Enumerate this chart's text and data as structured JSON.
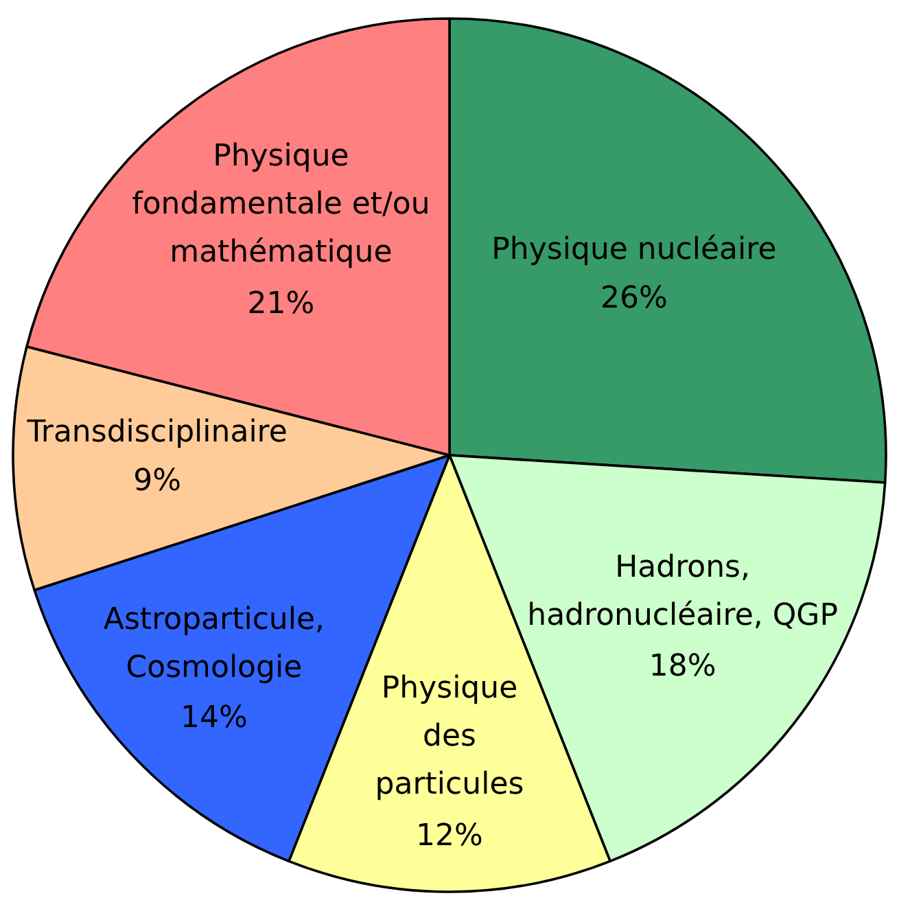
{
  "chart_data": {
    "type": "pie",
    "categories": [
      "Physique nucléaire",
      "Hadrons,\nhadronucléaire, QGP",
      "Physique\ndes\nparticules",
      "Astroparticule,\nCosmologie",
      "Transdisciplinaire",
      "Physique\nfondamentale et/ou\nmathématique"
    ],
    "values": [
      26,
      18,
      12,
      14,
      9,
      21
    ],
    "value_labels": [
      "26%",
      "18%",
      "12%",
      "14%",
      "9%",
      "21%"
    ],
    "colors": [
      "#379a69",
      "#ccffcc",
      "#ffff99",
      "#3366ff",
      "#ffcc99",
      "#ff8080"
    ]
  }
}
